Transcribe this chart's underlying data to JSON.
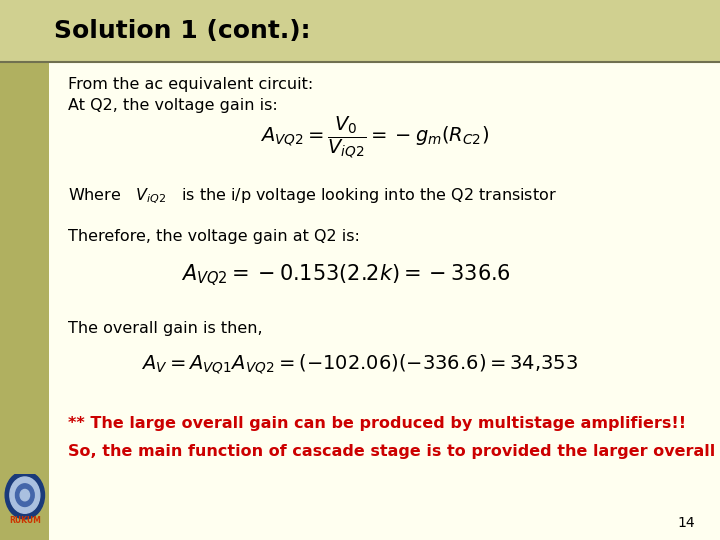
{
  "title": "Solution 1 (cont.):",
  "title_bg_color": "#d0d090",
  "slide_bg_color": "#fffff0",
  "left_bar_color": "#b0b060",
  "left_bar_width": 0.068,
  "title_fontsize": 18,
  "title_color": "#000000",
  "body_fontsize": 11.5,
  "body_color": "#000000",
  "red_text_color": "#cc0000",
  "page_number": "14",
  "line1": "From the ac equivalent circuit:",
  "line2": "At Q2, the voltage gain is:",
  "formula1": "$A_{VQ2} = \\dfrac{V_0}{V_{iQ2}} = -g_m(R_{C2})$",
  "line3": "Where   $V_{iQ2}$   is the i/p voltage looking into the Q2 transistor",
  "line4": "Therefore, the voltage gain at Q2 is:",
  "formula2": "$A_{VQ2} = -0.153(2.2k) = -336.6$",
  "line5": "The overall gain is then,",
  "formula3": "$A_V = A_{VQ1}A_{VQ2} = (-102.06)(-336.6) = 34{,}353$",
  "red_line1": "** The large overall gain can be produced by multistage amplifiers!!",
  "red_line2": "So, the main function of cascade stage is to provided the larger overall gain"
}
